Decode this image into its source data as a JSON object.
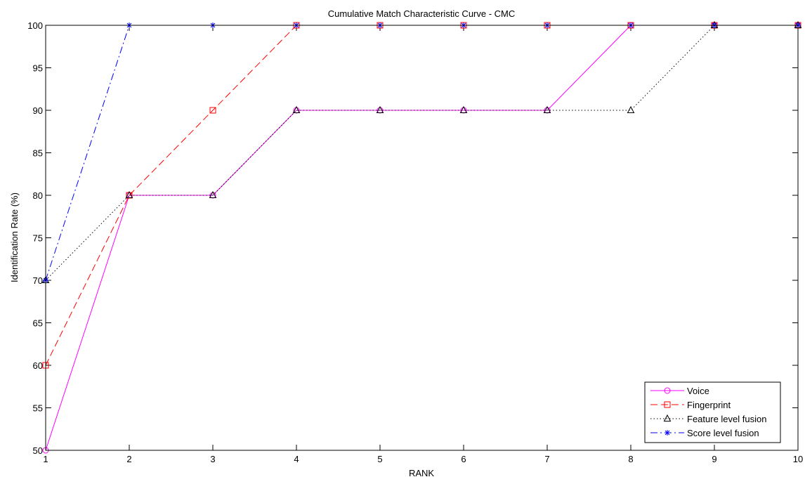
{
  "chart_data": {
    "type": "line",
    "title": "Cumulative Match Characteristic Curve - CMC",
    "xlabel": "RANK",
    "ylabel": "Identification Rate (%)",
    "xlim": [
      1,
      10
    ],
    "ylim": [
      50,
      100
    ],
    "x_ticks": [
      1,
      2,
      3,
      4,
      5,
      6,
      7,
      8,
      9,
      10
    ],
    "y_ticks": [
      50,
      55,
      60,
      65,
      70,
      75,
      80,
      85,
      90,
      95,
      100
    ],
    "x": [
      1,
      2,
      3,
      4,
      5,
      6,
      7,
      8,
      9,
      10
    ],
    "grid": false,
    "legend_position": "bottom-right",
    "series": [
      {
        "name": "Voice",
        "values": [
          50,
          80,
          80,
          90,
          90,
          90,
          90,
          100,
          100,
          100
        ],
        "color": "#ff00ff",
        "dash": "solid",
        "marker": "circle"
      },
      {
        "name": "Fingerprint",
        "values": [
          60,
          80,
          90,
          100,
          100,
          100,
          100,
          100,
          100,
          100
        ],
        "color": "#ff0000",
        "dash": "dashed",
        "marker": "square"
      },
      {
        "name": "Feature level fusion",
        "values": [
          70,
          80,
          80,
          90,
          90,
          90,
          90,
          90,
          100,
          100
        ],
        "color": "#000000",
        "dash": "dotted",
        "marker": "triangle"
      },
      {
        "name": "Score level fusion",
        "values": [
          70,
          100,
          100,
          100,
          100,
          100,
          100,
          100,
          100,
          100
        ],
        "color": "#0000ff",
        "dash": "dashdot",
        "marker": "star"
      }
    ]
  }
}
